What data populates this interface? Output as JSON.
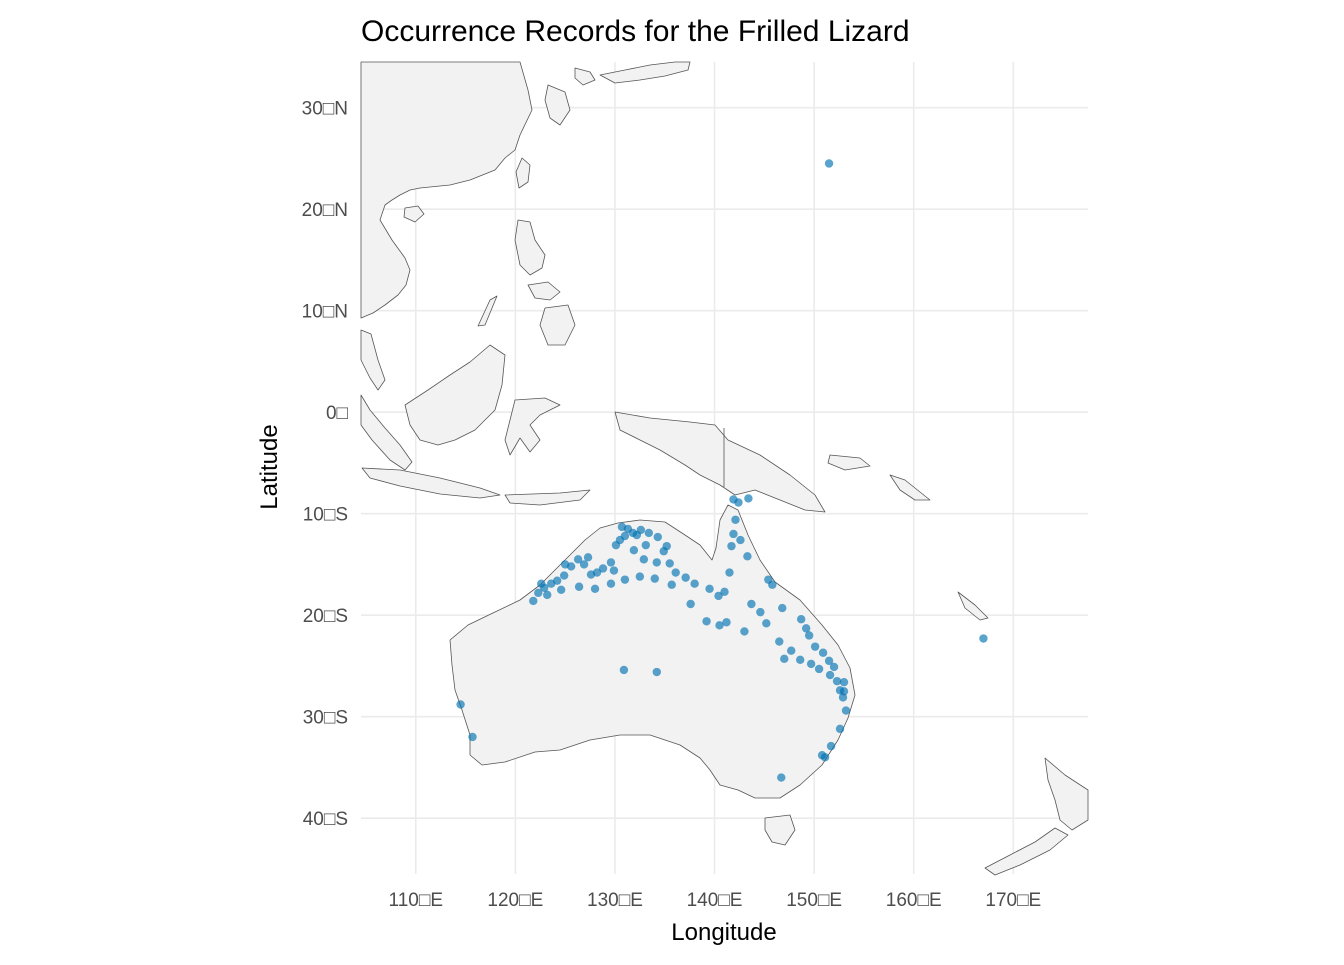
{
  "title": "Occurrence Records for the Frilled Lizard",
  "xlabel": "Longitude",
  "ylabel": "Latitude",
  "chart_data": {
    "type": "scatter",
    "title": "Occurrence Records for the Frilled Lizard",
    "xlabel": "Longitude",
    "ylabel": "Latitude",
    "xlim": [
      104.5,
      177.5
    ],
    "ylim": [
      -45.5,
      34.5
    ],
    "x_ticks": [
      110,
      120,
      130,
      140,
      150,
      160,
      170
    ],
    "x_tick_labels": [
      "110□E",
      "120□E",
      "130□E",
      "140□E",
      "150□E",
      "160□E",
      "170□E"
    ],
    "y_ticks": [
      30,
      20,
      10,
      0,
      -10,
      -20,
      -30,
      -40
    ],
    "y_tick_labels": [
      "30□N",
      "20□N",
      "10□N",
      "0□",
      "10□S",
      "20□S",
      "30□S",
      "40□S"
    ],
    "grid": true,
    "point_color": "#0072b2",
    "land_fill": "#f2f2f2",
    "land_stroke": "#555555",
    "grid_color": "#ebebeb",
    "points": [
      [
        151.5,
        24.5
      ],
      [
        167.0,
        -22.3
      ],
      [
        114.5,
        -28.8
      ],
      [
        115.7,
        -32.0
      ],
      [
        130.9,
        -25.4
      ],
      [
        134.2,
        -25.6
      ],
      [
        146.7,
        -36.0
      ],
      [
        150.8,
        -33.8
      ],
      [
        151.1,
        -34.0
      ],
      [
        151.7,
        -32.9
      ],
      [
        152.6,
        -31.2
      ],
      [
        153.2,
        -29.4
      ],
      [
        152.9,
        -28.1
      ],
      [
        152.6,
        -27.4
      ],
      [
        153.0,
        -26.6
      ],
      [
        150.9,
        -23.7
      ],
      [
        149.2,
        -21.3
      ],
      [
        148.7,
        -20.4
      ],
      [
        146.8,
        -19.3
      ],
      [
        145.8,
        -17.0
      ],
      [
        145.4,
        -16.5
      ],
      [
        143.3,
        -14.2
      ],
      [
        142.6,
        -12.6
      ],
      [
        142.1,
        -10.6
      ],
      [
        141.7,
        -13.2
      ],
      [
        141.9,
        -12.0
      ],
      [
        141.5,
        -15.8
      ],
      [
        141.0,
        -17.7
      ],
      [
        140.4,
        -18.1
      ],
      [
        139.5,
        -17.4
      ],
      [
        138.0,
        -16.9
      ],
      [
        137.1,
        -16.3
      ],
      [
        136.1,
        -15.8
      ],
      [
        135.5,
        -14.9
      ],
      [
        134.9,
        -13.7
      ],
      [
        134.3,
        -12.3
      ],
      [
        133.4,
        -11.9
      ],
      [
        132.6,
        -11.6
      ],
      [
        131.8,
        -11.9
      ],
      [
        131.0,
        -12.2
      ],
      [
        130.5,
        -12.6
      ],
      [
        130.1,
        -13.1
      ],
      [
        129.6,
        -14.8
      ],
      [
        128.8,
        -15.4
      ],
      [
        128.2,
        -15.8
      ],
      [
        127.6,
        -16.0
      ],
      [
        126.9,
        -15.0
      ],
      [
        126.3,
        -14.5
      ],
      [
        125.6,
        -15.2
      ],
      [
        124.9,
        -16.1
      ],
      [
        124.2,
        -16.6
      ],
      [
        123.6,
        -16.9
      ],
      [
        122.9,
        -17.3
      ],
      [
        122.3,
        -17.8
      ],
      [
        121.8,
        -18.6
      ],
      [
        123.2,
        -18.0
      ],
      [
        124.6,
        -17.5
      ],
      [
        126.4,
        -17.2
      ],
      [
        128.0,
        -17.4
      ],
      [
        129.6,
        -16.9
      ],
      [
        131.0,
        -16.5
      ],
      [
        132.5,
        -16.2
      ],
      [
        134.0,
        -16.4
      ],
      [
        135.7,
        -17.0
      ],
      [
        137.6,
        -18.9
      ],
      [
        139.2,
        -20.6
      ],
      [
        140.5,
        -21.0
      ],
      [
        141.2,
        -20.7
      ],
      [
        143.7,
        -18.9
      ],
      [
        144.6,
        -19.7
      ],
      [
        145.2,
        -20.8
      ],
      [
        146.5,
        -22.6
      ],
      [
        147.7,
        -23.5
      ],
      [
        148.6,
        -24.4
      ],
      [
        149.7,
        -24.8
      ],
      [
        150.5,
        -25.3
      ],
      [
        151.6,
        -25.9
      ],
      [
        152.3,
        -26.5
      ],
      [
        153.0,
        -27.5
      ],
      [
        143.0,
        -21.6
      ],
      [
        147.0,
        -24.3
      ],
      [
        149.5,
        -22.0
      ],
      [
        150.1,
        -23.1
      ],
      [
        151.5,
        -24.5
      ],
      [
        152.0,
        -25.1
      ],
      [
        141.9,
        -8.6
      ],
      [
        142.4,
        -8.9
      ],
      [
        143.4,
        -8.5
      ],
      [
        132.2,
        -12.1
      ],
      [
        133.1,
        -13.1
      ],
      [
        131.3,
        -11.5
      ],
      [
        130.7,
        -11.3
      ],
      [
        131.9,
        -13.6
      ],
      [
        132.9,
        -14.5
      ],
      [
        134.2,
        -14.8
      ],
      [
        135.2,
        -13.2
      ],
      [
        129.9,
        -15.6
      ],
      [
        127.3,
        -14.3
      ],
      [
        125.0,
        -15.0
      ],
      [
        122.6,
        -16.9
      ]
    ]
  }
}
